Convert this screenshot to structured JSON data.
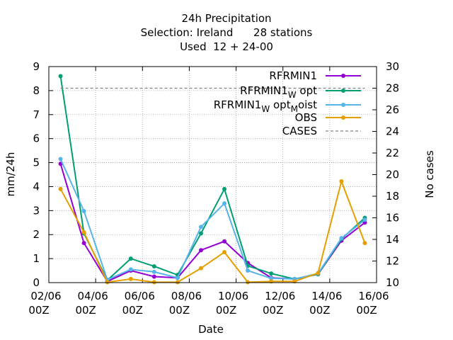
{
  "chart_data": {
    "type": "line",
    "title": [
      "24h Precipitation",
      "Selection: Ireland      28 stations",
      "Used  12 + 24-00"
    ],
    "xlabel": "Date",
    "ylabel": "mm/24h",
    "y2label": "No cases",
    "xlim": [
      0,
      14
    ],
    "ylim": [
      0,
      9
    ],
    "y2lim": [
      10,
      30
    ],
    "x_ticks": [
      {
        "x": 0,
        "line1": "02/06",
        "line2": "00Z"
      },
      {
        "x": 2,
        "line1": "04/06",
        "line2": "00Z"
      },
      {
        "x": 4,
        "line1": "06/06",
        "line2": "00Z"
      },
      {
        "x": 6,
        "line1": "08/06",
        "line2": "00Z"
      },
      {
        "x": 8,
        "line1": "10/06",
        "line2": "00Z"
      },
      {
        "x": 10,
        "line1": "12/06",
        "line2": "00Z"
      },
      {
        "x": 12,
        "line1": "14/06",
        "line2": "00Z"
      },
      {
        "x": 14,
        "line1": "16/06",
        "line2": "00Z"
      }
    ],
    "y_ticks": [
      0,
      1,
      2,
      3,
      4,
      5,
      6,
      7,
      8,
      9
    ],
    "y2_ticks": [
      10,
      12,
      14,
      16,
      18,
      20,
      22,
      24,
      26,
      28,
      30
    ],
    "x": [
      0.5,
      1.5,
      2.5,
      3.5,
      4.5,
      5.5,
      6.5,
      7.5,
      8.5,
      9.5,
      10.5,
      11.5,
      12.5,
      13.5
    ],
    "legend_position": "top-right",
    "series": [
      {
        "name": "RFRMIN1",
        "color": "#9400d3",
        "values": [
          4.95,
          1.65,
          0.05,
          0.5,
          0.25,
          0.2,
          1.35,
          1.72,
          0.82,
          0.2,
          0.15,
          0.35,
          1.75,
          2.5
        ]
      },
      {
        "name": "RFRMIN1_W opt",
        "color": "#009e73",
        "values": [
          8.6,
          2.05,
          0.1,
          1.0,
          0.68,
          0.32,
          2.05,
          3.9,
          0.7,
          0.38,
          0.15,
          0.35,
          1.82,
          2.7
        ]
      },
      {
        "name": "RFRMIN1_W opt_M oist",
        "color": "#56b4e9",
        "values": [
          5.15,
          2.98,
          0.12,
          0.55,
          0.45,
          0.2,
          2.32,
          3.3,
          0.5,
          0.18,
          0.15,
          0.38,
          1.85,
          2.62
        ]
      },
      {
        "name": "OBS",
        "color": "#e69f00",
        "values": [
          3.9,
          2.1,
          0.02,
          0.15,
          0.02,
          0.02,
          0.6,
          1.27,
          0.02,
          0.05,
          0.05,
          0.4,
          4.22,
          1.65
        ]
      },
      {
        "name": "CASES",
        "color": "#808080",
        "axis": "y2",
        "dashed": true,
        "values": [
          28,
          28,
          28,
          28,
          28,
          28,
          28,
          28,
          28,
          28,
          28,
          28,
          28,
          28
        ]
      }
    ]
  }
}
